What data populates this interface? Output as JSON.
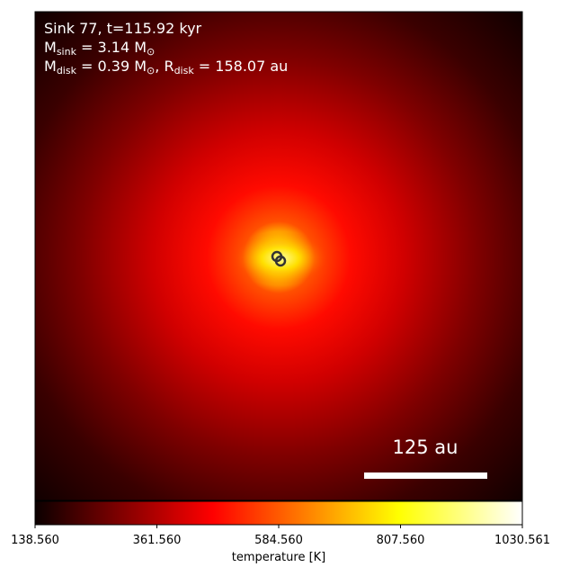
{
  "chart_data": {
    "type": "image",
    "annotations": [
      [
        "Sink 77, t=115.92 kyr"
      ],
      [
        "M",
        "sink",
        " = 3.14 M",
        "⊙"
      ],
      [
        "M",
        "disk",
        " = 0.39 M",
        "⊙",
        ", R",
        "disk",
        " = 158.07 au"
      ]
    ],
    "scalebar_label": "125 au",
    "colorbar": {
      "label": "temperature [K]",
      "colormap": "hot",
      "xlim": [
        138.56,
        1030.561
      ],
      "xticks": [
        {
          "value": 138.56,
          "label": "138.560"
        },
        {
          "value": 361.56,
          "label": "361.560"
        },
        {
          "value": 584.56,
          "label": "584.560"
        },
        {
          "value": 807.56,
          "label": "807.560"
        },
        {
          "value": 1030.561,
          "label": "1030.561"
        }
      ]
    }
  }
}
